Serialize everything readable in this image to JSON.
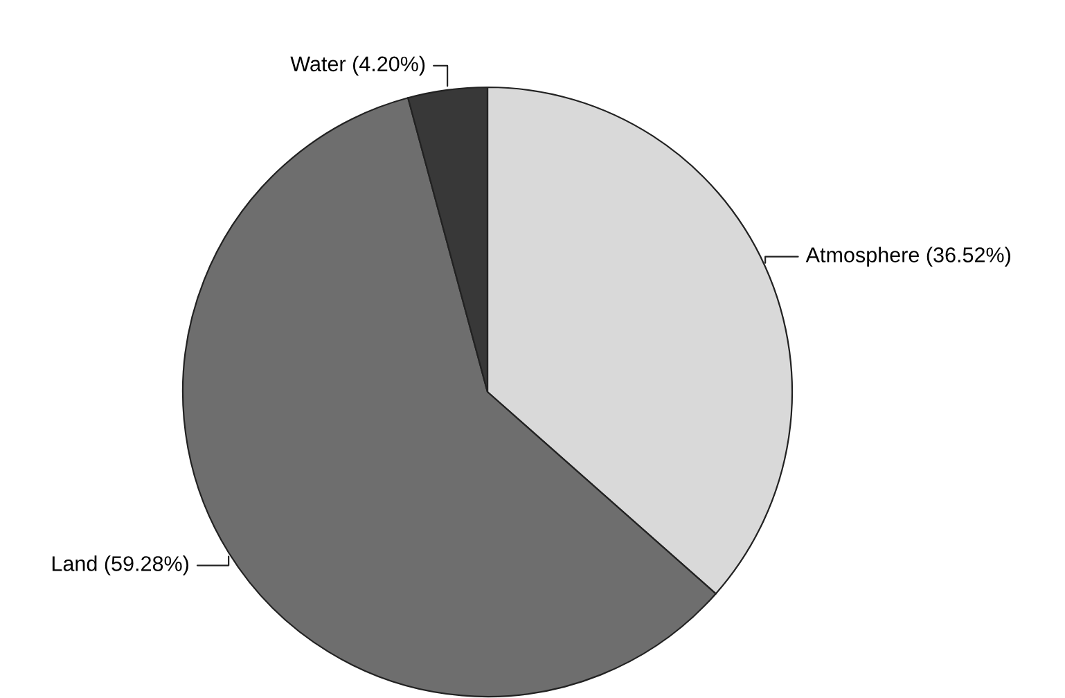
{
  "chart_data": {
    "type": "pie",
    "categories": [
      "Atmosphere",
      "Land",
      "Water"
    ],
    "values": [
      36.52,
      59.28,
      4.2
    ],
    "value_labels": [
      "(36.52%)",
      "(59.28%)",
      "(4.20%)"
    ],
    "colors": [
      "#d9d9d9",
      "#6e6e6e",
      "#383838"
    ],
    "legend": false
  }
}
